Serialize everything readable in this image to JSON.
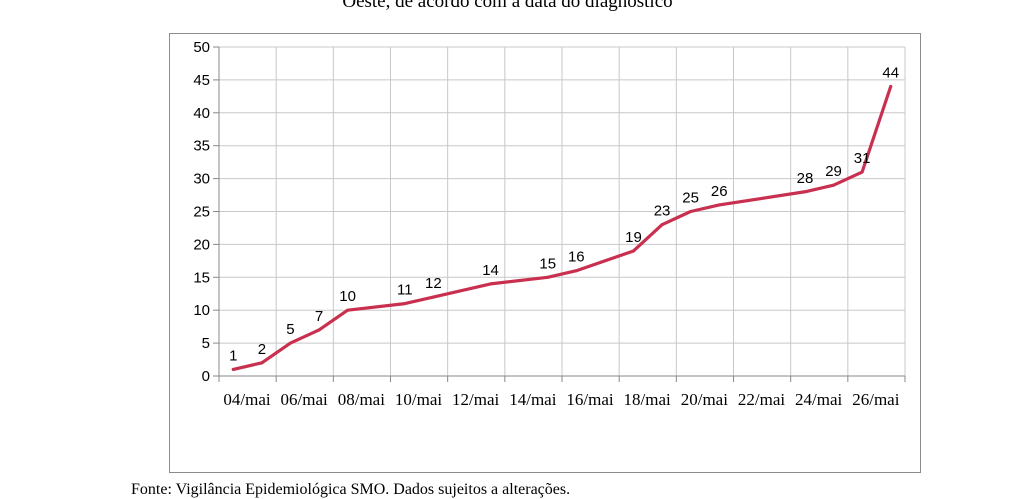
{
  "header": {
    "title_fragment": "Oeste, de acordo com a data do diagnóstico"
  },
  "footer": {
    "source": "Fonte: Vigilância Epidemiológica SMO. Dados sujeitos a alterações."
  },
  "colors": {
    "line": "#c9304f",
    "grid": "#c8c8c8",
    "frame": "#8c8c8c"
  },
  "chart_data": {
    "type": "line",
    "title": "",
    "xlabel": "",
    "ylabel": "",
    "grid": true,
    "ylim": [
      0,
      50
    ],
    "yticks": [
      0,
      5,
      10,
      15,
      20,
      25,
      30,
      35,
      40,
      45,
      50
    ],
    "xtick_labels": [
      "04/mai",
      "06/mai",
      "08/mai",
      "10/mai",
      "12/mai",
      "14/mai",
      "16/mai",
      "18/mai",
      "20/mai",
      "22/mai",
      "24/mai",
      "26/mai"
    ],
    "series": [
      {
        "points": [
          {
            "x": "04/mai",
            "y": 1
          },
          {
            "x": "05/mai",
            "y": 2
          },
          {
            "x": "06/mai",
            "y": 5
          },
          {
            "x": "07/mai",
            "y": 7
          },
          {
            "x": "08/mai",
            "y": 10
          },
          {
            "x": "10/mai",
            "y": 11
          },
          {
            "x": "11/mai",
            "y": 12
          },
          {
            "x": "13/mai",
            "y": 14
          },
          {
            "x": "15/mai",
            "y": 15
          },
          {
            "x": "16/mai",
            "y": 16
          },
          {
            "x": "18/mai",
            "y": 19
          },
          {
            "x": "19/mai",
            "y": 23
          },
          {
            "x": "20/mai",
            "y": 25
          },
          {
            "x": "21/mai",
            "y": 26
          },
          {
            "x": "24/mai",
            "y": 28
          },
          {
            "x": "25/mai",
            "y": 29
          },
          {
            "x": "26/mai",
            "y": 31
          },
          {
            "x": "27/mai",
            "y": 44
          }
        ]
      }
    ]
  }
}
